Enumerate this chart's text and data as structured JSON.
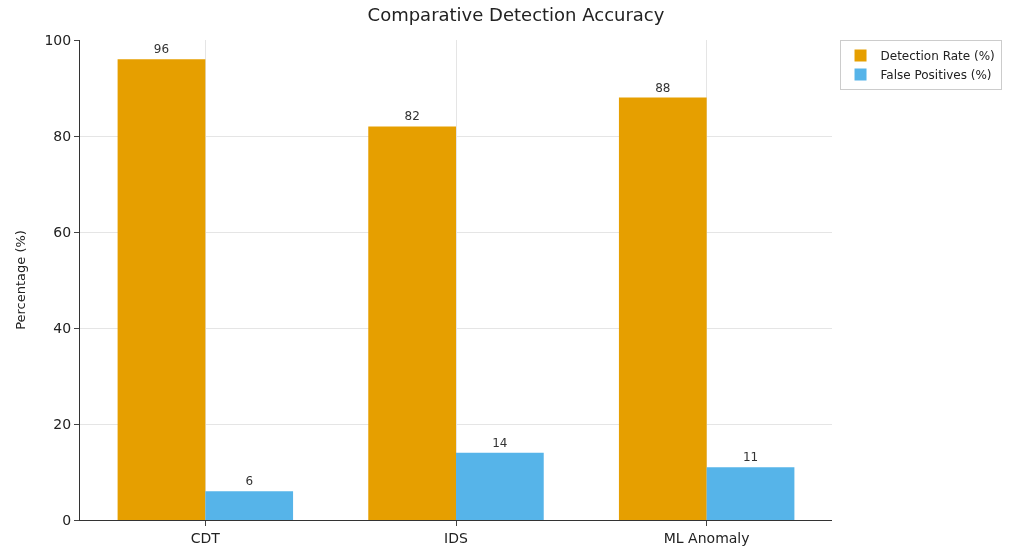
{
  "chart_data": {
    "type": "bar",
    "title": "Comparative Detection Accuracy",
    "ylabel": "Percentage (%)",
    "categories": [
      "CDT",
      "IDS",
      "ML Anomaly"
    ],
    "series": [
      {
        "name": "Detection Rate (%)",
        "color": "#e69f00",
        "values": [
          96,
          82,
          88
        ]
      },
      {
        "name": "False Positives (%)",
        "color": "#56b4e9",
        "values": [
          6,
          14,
          11
        ]
      }
    ],
    "ylim": [
      0,
      100
    ],
    "yticks": [
      0,
      20,
      40,
      60,
      80,
      100
    ],
    "grid": true,
    "legend": "top right",
    "data_labels": true
  }
}
